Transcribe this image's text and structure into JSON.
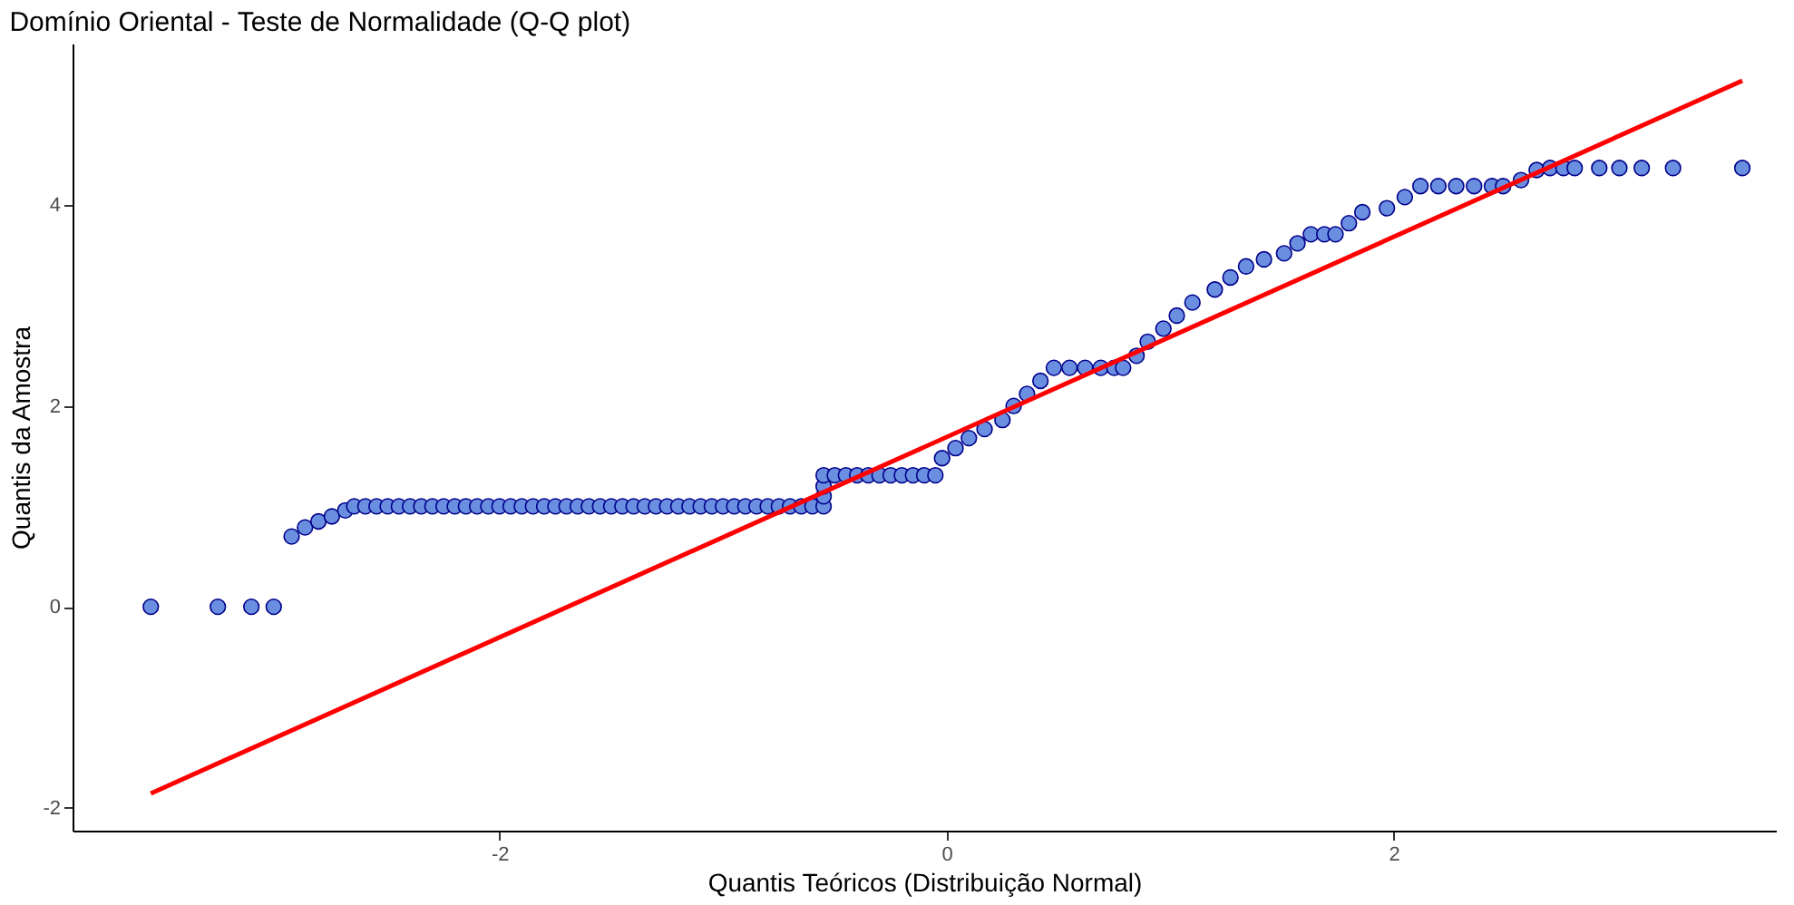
{
  "chart_data": {
    "type": "scatter",
    "title": "Domínio Oriental - Teste de Normalidade (Q-Q plot)",
    "xlabel": "Quantis Teóricos (Distribuição Normal)",
    "ylabel": "Quantis da Amostra",
    "xlim": [
      -3.91,
      3.71
    ],
    "ylim": [
      -2.23,
      5.61
    ],
    "xticks": [
      -2,
      0,
      2
    ],
    "yticks": [
      -2,
      0,
      2,
      4
    ],
    "grid": false,
    "series": [
      {
        "marker": "circle",
        "color": "#6b8fe0",
        "x": [
          -3.56,
          -3.26,
          -3.11,
          -3.01,
          -2.93,
          -2.87,
          -2.81,
          -2.75,
          -2.69,
          -2.65,
          -2.6,
          -2.55,
          -2.5,
          -2.45,
          -2.4,
          -2.35,
          -2.3,
          -2.25,
          -2.2,
          -2.15,
          -2.1,
          -2.05,
          -2.0,
          -1.95,
          -1.9,
          -1.85,
          -1.8,
          -1.75,
          -1.7,
          -1.65,
          -1.6,
          -1.55,
          -1.5,
          -1.45,
          -1.4,
          -1.35,
          -1.3,
          -1.25,
          -1.2,
          -1.15,
          -1.1,
          -1.05,
          -1.0,
          -0.95,
          -0.9,
          -0.85,
          -0.8,
          -0.75,
          -0.7,
          -0.65,
          -0.6,
          -0.55,
          -0.55,
          -0.55,
          -0.55,
          -0.5,
          -0.45,
          -0.4,
          -0.35,
          -0.3,
          -0.25,
          -0.2,
          -0.15,
          -0.1,
          -0.05,
          -0.02,
          0.04,
          0.1,
          0.17,
          0.25,
          0.3,
          0.36,
          0.42,
          0.48,
          0.55,
          0.62,
          0.69,
          0.75,
          0.79,
          0.85,
          0.9,
          0.97,
          1.03,
          1.1,
          1.2,
          1.27,
          1.34,
          1.42,
          1.51,
          1.57,
          1.63,
          1.69,
          1.74,
          1.8,
          1.86,
          1.97,
          2.05,
          2.12,
          2.2,
          2.28,
          2.36,
          2.44,
          2.49,
          2.57,
          2.64,
          2.7,
          2.76,
          2.81,
          2.92,
          3.01,
          3.11,
          3.25,
          3.56
        ],
        "values": [
          0,
          0,
          0,
          0,
          0.7,
          0.79,
          0.85,
          0.9,
          0.96,
          1.0,
          1.0,
          1.0,
          1.0,
          1.0,
          1.0,
          1.0,
          1.0,
          1.0,
          1.0,
          1.0,
          1.0,
          1.0,
          1.0,
          1.0,
          1.0,
          1.0,
          1.0,
          1.0,
          1.0,
          1.0,
          1.0,
          1.0,
          1.0,
          1.0,
          1.0,
          1.0,
          1.0,
          1.0,
          1.0,
          1.0,
          1.0,
          1.0,
          1.0,
          1.0,
          1.0,
          1.0,
          1.0,
          1.0,
          1.0,
          1.0,
          1.0,
          1.0,
          1.1,
          1.2,
          1.31,
          1.31,
          1.31,
          1.31,
          1.31,
          1.31,
          1.31,
          1.31,
          1.31,
          1.31,
          1.31,
          1.48,
          1.58,
          1.68,
          1.77,
          1.86,
          2.0,
          2.12,
          2.25,
          2.38,
          2.38,
          2.38,
          2.38,
          2.38,
          2.38,
          2.5,
          2.64,
          2.77,
          2.9,
          3.03,
          3.16,
          3.28,
          3.39,
          3.46,
          3.52,
          3.62,
          3.71,
          3.71,
          3.71,
          3.82,
          3.93,
          3.97,
          4.08,
          4.19,
          4.19,
          4.19,
          4.19,
          4.19,
          4.19,
          4.25,
          4.35,
          4.37,
          4.37,
          4.37,
          4.37,
          4.37,
          4.37,
          4.37,
          4.37
        ]
      },
      {
        "type": "line",
        "color": "#ff0000",
        "x": [
          -3.56,
          3.56
        ],
        "values": [
          -1.86,
          5.24
        ]
      }
    ]
  }
}
